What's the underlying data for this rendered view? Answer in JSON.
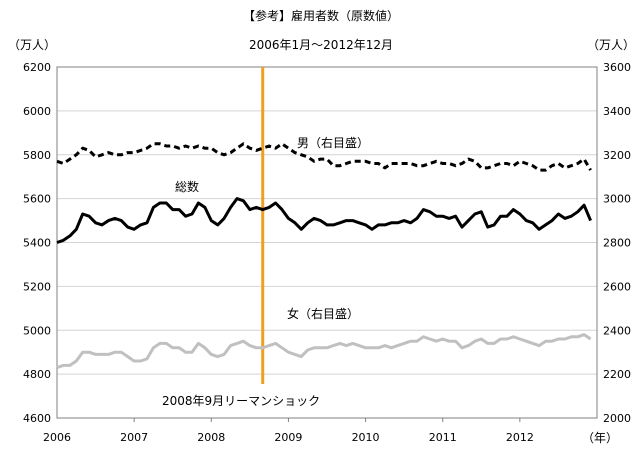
{
  "chart_data": {
    "type": "line",
    "title": "【参考】雇用者数（原数値）",
    "subtitle": "2006年1月～2012年12月",
    "y_left_unit": "（万人）",
    "y_right_unit": "（万人）",
    "x_unit": "（年）",
    "x_tick_labels": [
      "2006",
      "2007",
      "2008",
      "2009",
      "2010",
      "2011",
      "2012"
    ],
    "y_left_ticks": [
      4600,
      4800,
      5000,
      5200,
      5400,
      5600,
      5800,
      6000,
      6200
    ],
    "y_right_ticks": [
      2000,
      2200,
      2400,
      2600,
      2800,
      3000,
      3200,
      3400,
      3600
    ],
    "y_left_range": [
      4600,
      6200
    ],
    "y_right_range": [
      2000,
      3600
    ],
    "x_range": [
      2006,
      2013
    ],
    "grid": true,
    "series": [
      {
        "name": "男（右目盛）",
        "axis": "right",
        "color": "#000000",
        "style": "dashed",
        "start": "2006-01",
        "values": [
          3170,
          3160,
          3180,
          3200,
          3230,
          3220,
          3190,
          3200,
          3210,
          3200,
          3200,
          3210,
          3210,
          3220,
          3230,
          3250,
          3250,
          3240,
          3240,
          3230,
          3240,
          3230,
          3240,
          3230,
          3230,
          3210,
          3200,
          3210,
          3230,
          3250,
          3230,
          3220,
          3230,
          3240,
          3230,
          3250,
          3230,
          3210,
          3200,
          3190,
          3170,
          3180,
          3180,
          3150,
          3150,
          3160,
          3170,
          3170,
          3170,
          3160,
          3160,
          3140,
          3160,
          3160,
          3160,
          3160,
          3150,
          3150,
          3160,
          3170,
          3160,
          3160,
          3150,
          3160,
          3180,
          3170,
          3140,
          3140,
          3150,
          3160,
          3160,
          3150,
          3170,
          3160,
          3150,
          3130,
          3130,
          3150,
          3160,
          3140,
          3150,
          3160,
          3180,
          3130
        ]
      },
      {
        "name": "総数",
        "axis": "left",
        "color": "#000000",
        "style": "solid",
        "start": "2006-01",
        "values": [
          5400,
          5410,
          5430,
          5460,
          5530,
          5520,
          5490,
          5480,
          5500,
          5510,
          5500,
          5470,
          5460,
          5480,
          5490,
          5560,
          5580,
          5580,
          5550,
          5550,
          5520,
          5530,
          5580,
          5560,
          5500,
          5480,
          5510,
          5560,
          5600,
          5590,
          5550,
          5560,
          5550,
          5560,
          5580,
          5550,
          5510,
          5490,
          5460,
          5490,
          5510,
          5500,
          5480,
          5480,
          5490,
          5500,
          5500,
          5490,
          5480,
          5460,
          5480,
          5480,
          5490,
          5490,
          5500,
          5490,
          5510,
          5550,
          5540,
          5520,
          5520,
          5510,
          5520,
          5470,
          5500,
          5530,
          5540,
          5470,
          5480,
          5520,
          5520,
          5550,
          5530,
          5500,
          5490,
          5460,
          5480,
          5500,
          5530,
          5510,
          5520,
          5540,
          5570,
          5500
        ]
      },
      {
        "name": "女（右目盛）",
        "axis": "right",
        "color": "#c0c0c0",
        "style": "solid",
        "start": "2006-01",
        "values": [
          2230,
          2240,
          2240,
          2260,
          2300,
          2300,
          2290,
          2290,
          2290,
          2300,
          2300,
          2280,
          2260,
          2260,
          2270,
          2320,
          2340,
          2340,
          2320,
          2320,
          2300,
          2300,
          2340,
          2320,
          2290,
          2280,
          2290,
          2330,
          2340,
          2350,
          2330,
          2320,
          2320,
          2330,
          2340,
          2320,
          2300,
          2290,
          2280,
          2310,
          2320,
          2320,
          2320,
          2330,
          2340,
          2330,
          2340,
          2330,
          2320,
          2320,
          2320,
          2330,
          2320,
          2330,
          2340,
          2350,
          2350,
          2370,
          2360,
          2350,
          2360,
          2350,
          2350,
          2320,
          2330,
          2350,
          2360,
          2340,
          2340,
          2360,
          2360,
          2370,
          2360,
          2350,
          2340,
          2330,
          2350,
          2350,
          2360,
          2360,
          2370,
          2370,
          2380,
          2360
        ]
      }
    ],
    "annotations": [
      {
        "label": "男（右目盛）",
        "series": "男（右目盛）"
      },
      {
        "label": "総数",
        "series": "総数"
      },
      {
        "label": "女（右目盛）",
        "series": "女（右目盛）"
      },
      {
        "label": "2008年9月リーマンショック",
        "x": "2008-09",
        "color": "#f0a020"
      }
    ]
  }
}
